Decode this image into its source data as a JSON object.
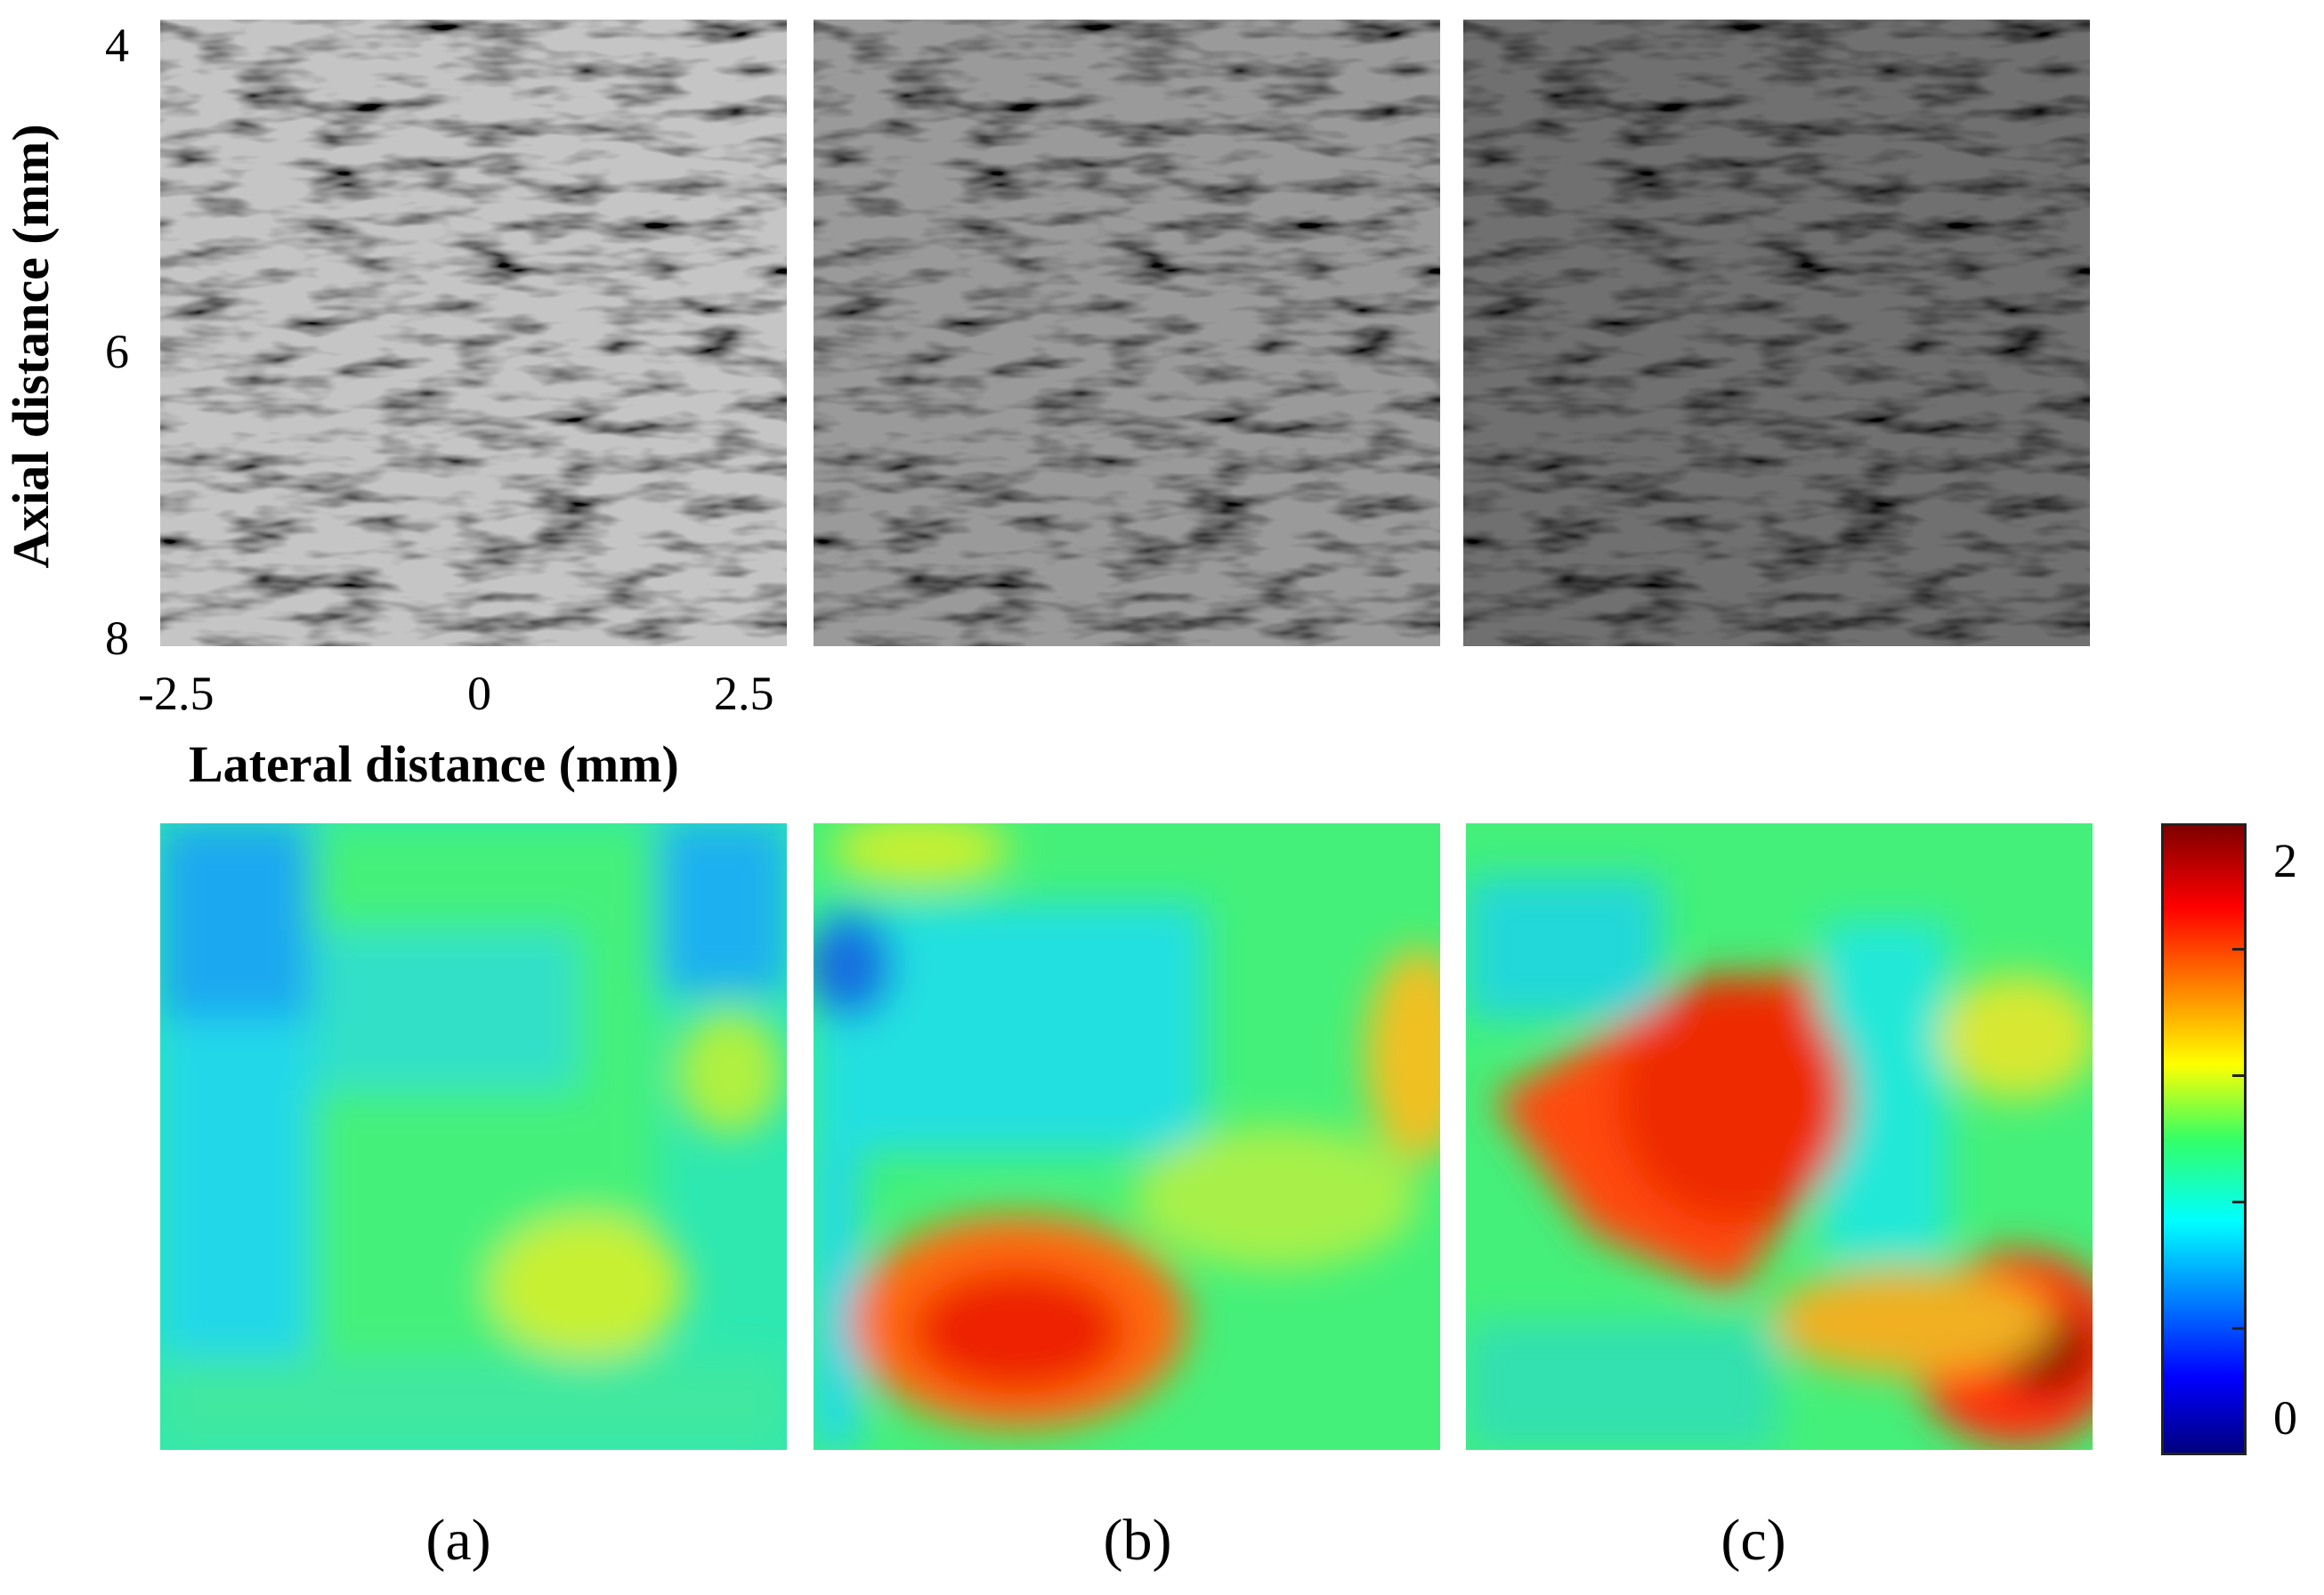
{
  "axes": {
    "ylabel": "Axial distance (mm)",
    "xlabel": "Lateral distance (mm)",
    "y_ticks": [
      "4",
      "6",
      "8"
    ],
    "x_ticks": [
      "-2.5",
      "0",
      "2.5"
    ]
  },
  "colorbar": {
    "max_label": "2",
    "min_label": "0",
    "range": [
      0,
      2
    ],
    "colormap": "jet"
  },
  "panel_labels": [
    "(a)",
    "(b)",
    "(c)"
  ],
  "bmode_panels": [
    {
      "panel": "(a)",
      "brightness": "light gray"
    },
    {
      "panel": "(b)",
      "brightness": "medium gray"
    },
    {
      "panel": "(c)",
      "brightness": "dark gray"
    }
  ],
  "param_maps": [
    {
      "panel": "(a)",
      "dominant": "green-cyan",
      "hotspot": "yellow"
    },
    {
      "panel": "(b)",
      "dominant": "green-cyan",
      "hotspot": "red"
    },
    {
      "panel": "(c)",
      "dominant": "green",
      "hotspot": "dark red"
    }
  ]
}
